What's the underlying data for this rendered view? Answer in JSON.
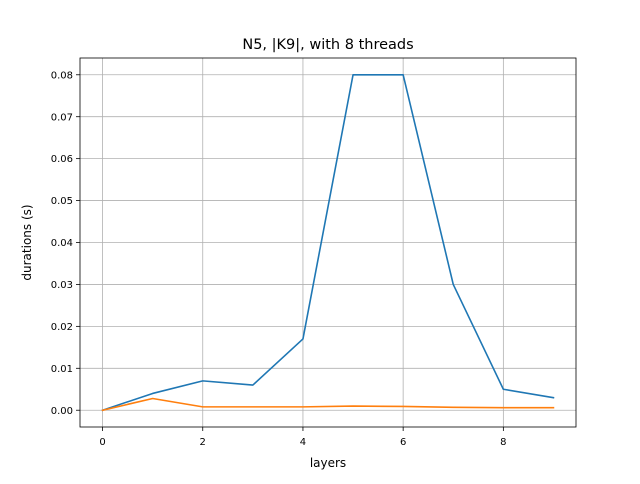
{
  "chart_data": {
    "type": "line",
    "title": "N5, |K9|, with 8 threads",
    "xlabel": "layers",
    "ylabel": "durations (s)",
    "x": [
      0,
      1,
      2,
      3,
      4,
      5,
      6,
      7,
      8,
      9
    ],
    "xlim": [
      -0.45,
      9.45
    ],
    "ylim": [
      -0.004,
      0.084
    ],
    "xticks": [
      0,
      2,
      4,
      6,
      8
    ],
    "xtick_labels": [
      "0",
      "2",
      "4",
      "6",
      "8"
    ],
    "yticks": [
      0.0,
      0.01,
      0.02,
      0.03,
      0.04,
      0.05,
      0.06,
      0.07,
      0.08
    ],
    "ytick_labels": [
      "0.00",
      "0.01",
      "0.02",
      "0.03",
      "0.04",
      "0.05",
      "0.06",
      "0.07",
      "0.08"
    ],
    "grid": true,
    "legend": null,
    "series": [
      {
        "color": "#1f77b4",
        "values": [
          0.0,
          0.004,
          0.007,
          0.006,
          0.017,
          0.08,
          0.08,
          0.03,
          0.005,
          0.003
        ]
      },
      {
        "color": "#ff7f0e",
        "values": [
          0.0,
          0.0028,
          0.0008,
          0.0008,
          0.0008,
          0.001,
          0.0009,
          0.0007,
          0.0006,
          0.0006
        ]
      }
    ]
  }
}
